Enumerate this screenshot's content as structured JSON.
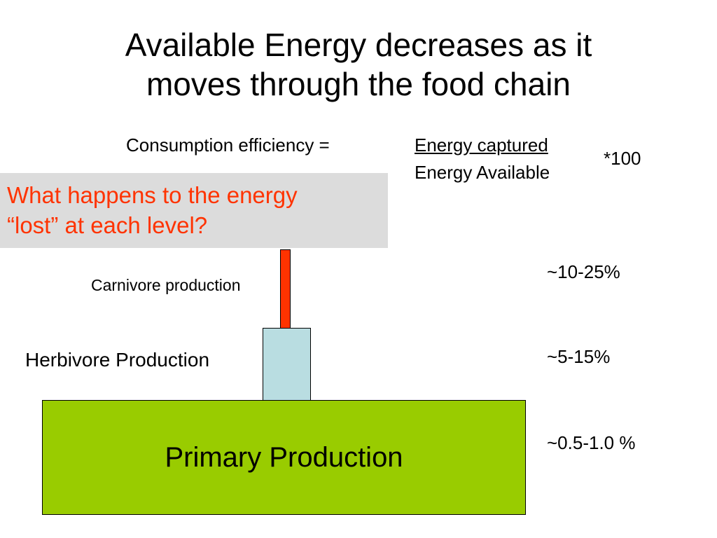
{
  "title": {
    "line1": "Available Energy decreases as it",
    "line2": "moves through the food chain"
  },
  "formula": {
    "label": "Consumption efficiency =",
    "numerator": "Energy captured",
    "denominator": "Energy Available",
    "multiplier": "*100"
  },
  "question": {
    "line1": "What happens to the energy",
    "line2": "“lost” at each level?"
  },
  "levels": {
    "carnivore": {
      "label": "Carnivore production",
      "efficiency": "~10-25%"
    },
    "herbivore": {
      "label": "Herbivore Production",
      "efficiency": "~5-15%"
    },
    "primary": {
      "label": "Primary Production",
      "efficiency": "~0.5-1.0 %"
    }
  },
  "colors": {
    "question_text": "#ff3300",
    "question_bg": "#dcdcdc",
    "carnivore_bar": "#ff3300",
    "herbivore_bar": "#b9dde1",
    "primary_box": "#99cc00"
  }
}
